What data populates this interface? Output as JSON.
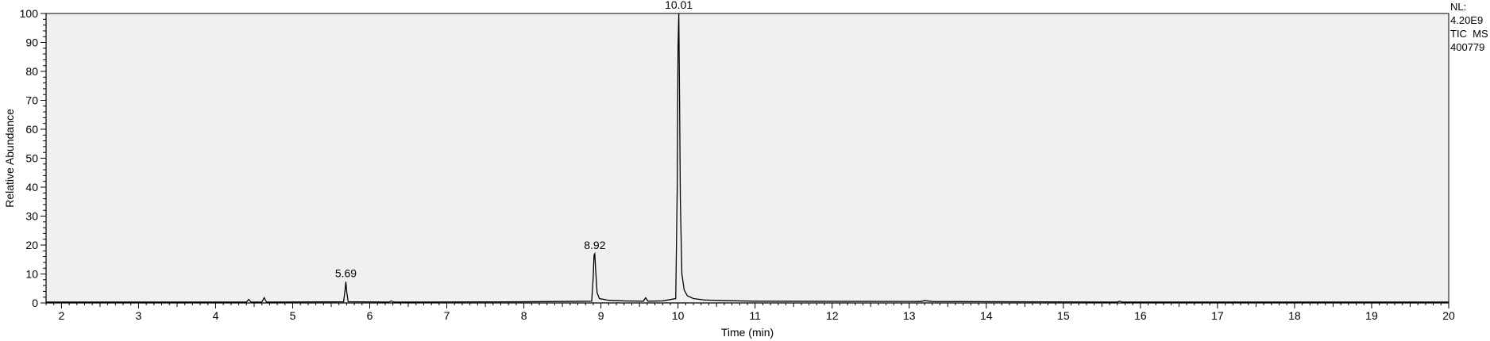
{
  "info": {
    "nl_label": "NL:",
    "nl_value": "4.20E9",
    "scan": "TIC  MS",
    "sample": "400779"
  },
  "chart_data": {
    "type": "line",
    "title": "",
    "xlabel": "Time (min)",
    "ylabel": "Relative Abundance",
    "xlim": [
      1.8,
      20
    ],
    "ylim": [
      0,
      100
    ],
    "xticks": [
      2,
      3,
      4,
      5,
      6,
      7,
      8,
      9,
      10,
      11,
      12,
      13,
      14,
      15,
      16,
      17,
      18,
      19,
      20
    ],
    "yticks": [
      0,
      10,
      20,
      30,
      40,
      50,
      60,
      70,
      80,
      90,
      100
    ],
    "grid": false,
    "background": "#f0f0f0",
    "line_color": "#000000",
    "series": [
      {
        "x": [
          1.8,
          4.4,
          4.43,
          4.46,
          4.6,
          4.63,
          4.66,
          5.66,
          5.68,
          5.69,
          5.7,
          5.72,
          6.25,
          6.28,
          6.31,
          8.0,
          8.88,
          8.9,
          8.91,
          8.92,
          8.93,
          8.95,
          8.98,
          9.1,
          9.3,
          9.55,
          9.58,
          9.61,
          9.8,
          9.97,
          9.99,
          10.0,
          10.01,
          10.02,
          10.03,
          10.05,
          10.08,
          10.12,
          10.2,
          10.35,
          10.6,
          11.0,
          13.15,
          13.2,
          13.3,
          15.7,
          15.73,
          15.76,
          20.0
        ],
        "y": [
          0.3,
          0.3,
          1.2,
          0.3,
          0.3,
          1.8,
          0.3,
          0.4,
          4.5,
          7.3,
          4.0,
          0.4,
          0.3,
          0.7,
          0.3,
          0.4,
          0.6,
          9.0,
          16.5,
          17.0,
          12.0,
          3.5,
          1.5,
          0.9,
          0.7,
          0.6,
          1.8,
          0.6,
          0.7,
          1.5,
          40.0,
          88.0,
          100,
          70.0,
          36.0,
          10.0,
          4.5,
          2.5,
          1.5,
          1.0,
          0.8,
          0.6,
          0.5,
          0.8,
          0.5,
          0.3,
          0.6,
          0.3,
          0.3
        ]
      }
    ],
    "peak_labels": [
      {
        "x": 5.69,
        "y": 7.3,
        "text": "5.69"
      },
      {
        "x": 8.92,
        "y": 17.0,
        "text": "8.92"
      },
      {
        "x": 10.01,
        "y": 100,
        "text": "10.01"
      }
    ]
  }
}
